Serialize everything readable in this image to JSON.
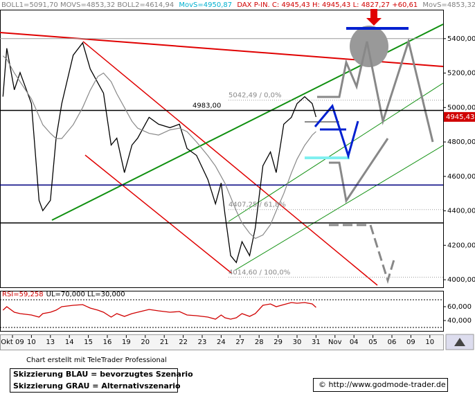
{
  "header": [
    {
      "text": "BOLL1=5091,70 MOVS=4853,32 BOLL2=4614,94",
      "color": "#808080"
    },
    {
      "text": "MovS=4950,87",
      "color": "#00b0d0"
    },
    {
      "text": "DAX P-IN. C: 4945,43 H: 4945,43 L: 4827,27 +60,61",
      "color": "#d00000"
    },
    {
      "text": "MovS=4853,32",
      "color": "#808080"
    }
  ],
  "chart_data": [
    {
      "type": "line",
      "x": [
        -0.5,
        -0.3,
        0.1,
        0.4,
        1.0,
        1.4,
        1.6,
        2.0,
        2.3,
        2.6,
        3.2,
        3.7,
        4.1,
        4.5,
        4.8,
        5.2,
        5.5,
        5.9,
        6.3,
        6.6,
        7.2,
        7.7,
        8.3,
        8.8,
        9.2,
        9.7,
        10.3,
        10.7,
        11.0,
        11.2,
        11.5,
        11.8,
        12.1,
        12.5,
        12.8,
        13.2,
        13.6,
        13.9,
        14.3,
        14.7,
        15.0,
        15.4,
        15.8,
        16.0
      ],
      "series": [
        {
          "color": "#000000",
          "values": [
            5063,
            5344,
            5103,
            5203,
            5023,
            4461,
            4401,
            4461,
            4822,
            5023,
            5304,
            5376,
            5224,
            5143,
            5083,
            4782,
            4822,
            4622,
            4782,
            4822,
            4943,
            4903,
            4883,
            4903,
            4762,
            4722,
            4582,
            4441,
            4562,
            4381,
            4140,
            4100,
            4221,
            4140,
            4301,
            4662,
            4742,
            4622,
            4903,
            4943,
            5023,
            5063,
            5023,
            4945
          ]
        },
        {
          "color": "#888888",
          "values": [
            5300,
            5280,
            5200,
            5150,
            5050,
            4950,
            4900,
            4850,
            4820,
            4820,
            4900,
            5000,
            5100,
            5180,
            5200,
            5150,
            5080,
            5000,
            4920,
            4880,
            4850,
            4840,
            4870,
            4880,
            4860,
            4800,
            4720,
            4660,
            4600,
            4560,
            4480,
            4400,
            4330,
            4270,
            4240,
            4260,
            4320,
            4400,
            4500,
            4620,
            4700,
            4780,
            4840,
            4860
          ]
        }
      ],
      "xlim": [
        -0.657,
        22.701
      ],
      "xticks": [
        {
          "value": 0,
          "label": "Okt 09"
        },
        {
          "value": 1,
          "label": "10"
        },
        {
          "value": 2,
          "label": "13"
        },
        {
          "value": 3,
          "label": "14"
        },
        {
          "value": 4,
          "label": "15"
        },
        {
          "value": 5,
          "label": "16"
        },
        {
          "value": 6,
          "label": "19"
        },
        {
          "value": 7,
          "label": "20"
        },
        {
          "value": 8,
          "label": "21"
        },
        {
          "value": 9,
          "label": "22"
        },
        {
          "value": 10,
          "label": "23"
        },
        {
          "value": 11,
          "label": "24"
        },
        {
          "value": 12,
          "label": "27"
        },
        {
          "value": 13,
          "label": "28"
        },
        {
          "value": 14,
          "label": "29"
        },
        {
          "value": 15,
          "label": "30"
        },
        {
          "value": 16,
          "label": "31"
        },
        {
          "value": 17,
          "label": "Nov"
        },
        {
          "value": 18,
          "label": "04"
        },
        {
          "value": 19,
          "label": "05"
        },
        {
          "value": 20,
          "label": "06"
        },
        {
          "value": 21,
          "label": "09"
        },
        {
          "value": 22,
          "label": "10"
        }
      ],
      "ylim": [
        3956,
        5568
      ],
      "yticks": [
        {
          "value": 4000,
          "label": "4000,00"
        },
        {
          "value": 4200,
          "label": "4200,00"
        },
        {
          "value": 4400,
          "label": "4400,00"
        },
        {
          "value": 4600,
          "label": "4600,00"
        },
        {
          "value": 4800,
          "label": "4800,00"
        },
        {
          "value": 5000,
          "label": "5000,00"
        },
        {
          "value": 5200,
          "label": "5200,00"
        },
        {
          "value": 5400,
          "label": "5400,00"
        }
      ],
      "levels": [
        {
          "value": 4983,
          "label": "4983,00",
          "color": "#000000",
          "style": "solid"
        },
        {
          "value": 4330,
          "color": "#000000",
          "style": "solid"
        },
        {
          "value": 4550,
          "color": "#000080",
          "style": "solid"
        },
        {
          "value": 5400,
          "color": "#999999",
          "style": "solid"
        },
        {
          "value": 5042.49,
          "label": "5042,49 / 0,0%",
          "color": "#999999",
          "style": "dotted"
        },
        {
          "value": 4407.25,
          "label": "4407,25 / 61,8%",
          "color": "#999999",
          "style": "dotted"
        },
        {
          "value": 4014.6,
          "label": "4014,60 / 100,0%",
          "color": "#999999",
          "style": "dotted"
        }
      ],
      "last": {
        "value": 4945.43,
        "label": "4945,43"
      }
    },
    {
      "type": "line",
      "title": "RSI=59,258",
      "subtitle": "UL=70,000 LL=30,000",
      "x": [
        -0.5,
        -0.3,
        0.1,
        0.4,
        1.0,
        1.4,
        1.6,
        2.0,
        2.3,
        2.6,
        3.2,
        3.7,
        4.1,
        4.5,
        4.8,
        5.2,
        5.5,
        5.9,
        6.3,
        6.6,
        7.2,
        7.7,
        8.3,
        8.8,
        9.2,
        9.7,
        10.3,
        10.7,
        11.0,
        11.2,
        11.5,
        11.8,
        12.1,
        12.5,
        12.8,
        13.2,
        13.6,
        13.9,
        14.3,
        14.7,
        15.0,
        15.4,
        15.8,
        16.0
      ],
      "series": [
        {
          "color": "#d00000",
          "values": [
            55,
            60,
            52,
            50,
            48,
            45,
            50,
            52,
            55,
            60,
            62,
            63,
            58,
            55,
            52,
            45,
            50,
            46,
            50,
            52,
            56,
            54,
            52,
            53,
            48,
            47,
            45,
            42,
            48,
            44,
            42,
            44,
            50,
            46,
            50,
            62,
            64,
            60,
            63,
            66,
            65,
            66,
            64,
            59
          ]
        }
      ],
      "xlim": [
        -0.657,
        22.701
      ],
      "ylim": [
        25,
        83
      ],
      "yticks": [
        {
          "value": 40,
          "label": "40,000"
        },
        {
          "value": 60,
          "label": "60,000"
        }
      ],
      "bands": [
        30,
        70
      ]
    }
  ],
  "footer": {
    "credit": "Chart erstellt mit TeleTrader Professional",
    "legend": [
      "Skizzierung BLAU = bevorzugtes Szenario",
      "Skizzierung GRAU = Alternativszenario"
    ],
    "copyright": "© http://www.godmode-trader.de"
  }
}
